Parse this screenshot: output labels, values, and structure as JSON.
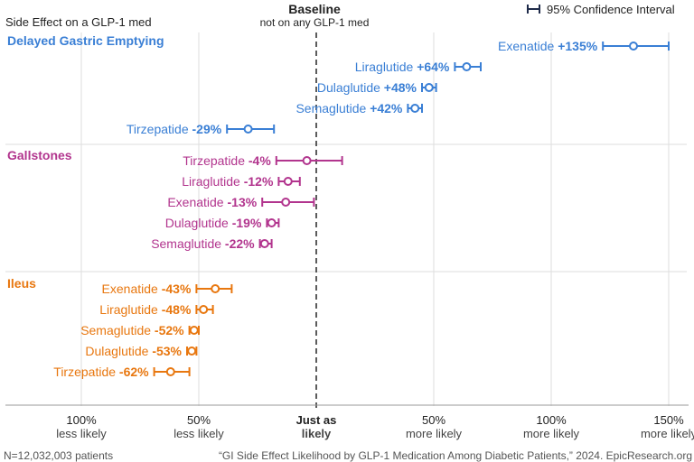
{
  "header": {
    "left_note": "Side Effect on a GLP-1 med",
    "baseline_title": "Baseline",
    "baseline_subtitle": "not on any GLP-1 med",
    "legend_label": "95% Confidence Interval"
  },
  "footer": {
    "patients": "N=12,032,003 patients",
    "citation": "“GI Side Effect Likelihood by GLP-1 Medication Among Diabetic Patients,” 2024. EpicResearch.org"
  },
  "colors": {
    "delayed": "#3a7fd5",
    "gallstones": "#b2358e",
    "ileus": "#e8770f",
    "legend": "#1f2b4a",
    "grid": "#dddddd",
    "baseline": "#333333"
  },
  "chart_data": {
    "type": "scatter",
    "xlim": [
      -1.0,
      1.5
    ],
    "ticks": [
      {
        "value": -1.0,
        "label": "100%",
        "sub": "less likely"
      },
      {
        "value": -0.5,
        "label": "50%",
        "sub": "less likely"
      },
      {
        "value": 0,
        "label": "Just as",
        "sub": "likely"
      },
      {
        "value": 0.5,
        "label": "50%",
        "sub": "more likely"
      },
      {
        "value": 1.0,
        "label": "100%",
        "sub": "more likely"
      },
      {
        "value": 1.5,
        "label": "150%",
        "sub": "more likely"
      }
    ],
    "groups": [
      {
        "name": "Delayed Gastric Emptying",
        "color_key": "delayed",
        "items": [
          {
            "drug": "Exenatide",
            "value_label": "+135%",
            "value": 1.35,
            "low": 1.22,
            "high": 1.5
          },
          {
            "drug": "Liraglutide",
            "value_label": "+64%",
            "value": 0.64,
            "low": 0.59,
            "high": 0.7
          },
          {
            "drug": "Dulaglutide",
            "value_label": "+48%",
            "value": 0.48,
            "low": 0.45,
            "high": 0.51
          },
          {
            "drug": "Semaglutide",
            "value_label": "+42%",
            "value": 0.42,
            "low": 0.39,
            "high": 0.45
          },
          {
            "drug": "Tirzepatide",
            "value_label": "-29%",
            "value": -0.29,
            "low": -0.38,
            "high": -0.18
          }
        ]
      },
      {
        "name": "Gallstones",
        "color_key": "gallstones",
        "items": [
          {
            "drug": "Tirzepatide",
            "value_label": "-4%",
            "value": -0.04,
            "low": -0.17,
            "high": 0.11
          },
          {
            "drug": "Liraglutide",
            "value_label": "-12%",
            "value": -0.12,
            "low": -0.16,
            "high": -0.07
          },
          {
            "drug": "Exenatide",
            "value_label": "-13%",
            "value": -0.13,
            "low": -0.23,
            "high": -0.01
          },
          {
            "drug": "Dulaglutide",
            "value_label": "-19%",
            "value": -0.19,
            "low": -0.21,
            "high": -0.16
          },
          {
            "drug": "Semaglutide",
            "value_label": "-22%",
            "value": -0.22,
            "low": -0.24,
            "high": -0.19
          }
        ]
      },
      {
        "name": "Ileus",
        "color_key": "ileus",
        "items": [
          {
            "drug": "Exenatide",
            "value_label": "-43%",
            "value": -0.43,
            "low": -0.51,
            "high": -0.36
          },
          {
            "drug": "Liraglutide",
            "value_label": "-48%",
            "value": -0.48,
            "low": -0.51,
            "high": -0.44
          },
          {
            "drug": "Semaglutide",
            "value_label": "-52%",
            "value": -0.52,
            "low": -0.54,
            "high": -0.5
          },
          {
            "drug": "Dulaglutide",
            "value_label": "-53%",
            "value": -0.53,
            "low": -0.55,
            "high": -0.51
          },
          {
            "drug": "Tirzepatide",
            "value_label": "-62%",
            "value": -0.62,
            "low": -0.69,
            "high": -0.54
          }
        ]
      }
    ]
  }
}
